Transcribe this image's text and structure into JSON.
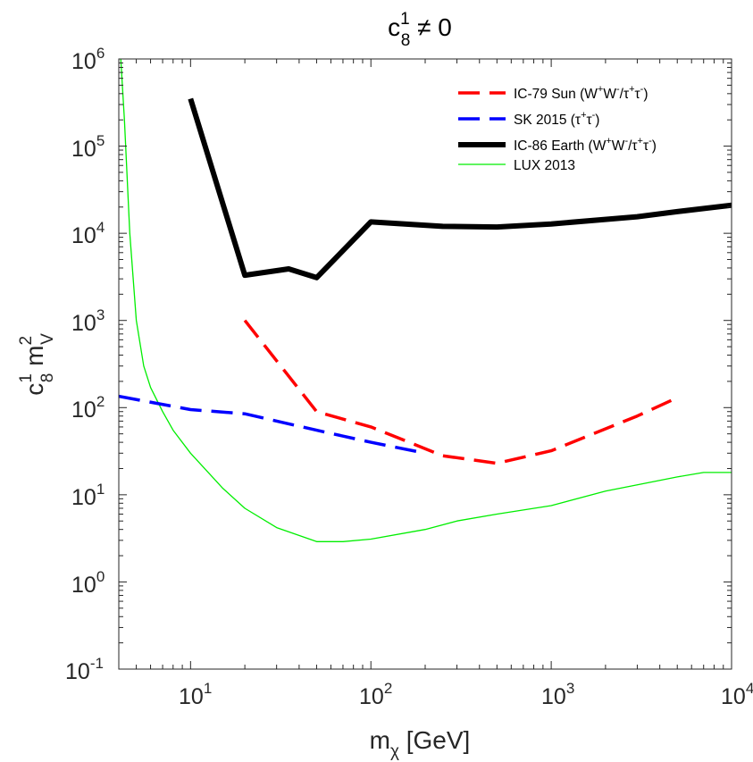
{
  "chart_data": {
    "type": "line",
    "title": {
      "base": "c",
      "sub": "8",
      "sup": "1",
      "rest": " ≠ 0"
    },
    "xlabel": {
      "base": "m",
      "sub": "χ",
      "rest": " [GeV]"
    },
    "ylabel": {
      "base": "c",
      "sub1": "8",
      "sup1": "1",
      "mid": " m",
      "sub2": "V",
      "sup2": "2"
    },
    "xscale": "log",
    "yscale": "log",
    "xlim": [
      4,
      10000
    ],
    "ylim": [
      0.1,
      1000000
    ],
    "x_ticks": [
      {
        "value": 10,
        "base": "10",
        "exp": "1"
      },
      {
        "value": 100,
        "base": "10",
        "exp": "2"
      },
      {
        "value": 1000,
        "base": "10",
        "exp": "3"
      },
      {
        "value": 10000,
        "base": "10",
        "exp": "4"
      }
    ],
    "y_ticks": [
      {
        "value": 0.1,
        "base": "10",
        "exp": "-1"
      },
      {
        "value": 1,
        "base": "10",
        "exp": "0"
      },
      {
        "value": 10,
        "base": "10",
        "exp": "1"
      },
      {
        "value": 100,
        "base": "10",
        "exp": "2"
      },
      {
        "value": 1000,
        "base": "10",
        "exp": "3"
      },
      {
        "value": 10000,
        "base": "10",
        "exp": "4"
      },
      {
        "value": 100000,
        "base": "10",
        "exp": "5"
      },
      {
        "value": 1000000,
        "base": "10",
        "exp": "6"
      }
    ],
    "grid": false,
    "legend_position": "top-right",
    "series": [
      {
        "id": "ic79-sun",
        "name": "IC-79 Sun (W⁺W⁻/τ⁺τ⁻)",
        "legend": {
          "a": "IC-79 Sun (W",
          "b": "+",
          "c": "W",
          "d": "-",
          "e": "/τ",
          "f": "+",
          "g": "τ",
          "h": "-",
          "i": ")"
        },
        "color": "#ff0000",
        "style": "dashed",
        "width": 3.5,
        "x": [
          20,
          50,
          100,
          250,
          500,
          1000,
          3000,
          5000
        ],
        "y": [
          1000,
          90,
          60,
          28,
          23,
          32,
          80,
          130
        ]
      },
      {
        "id": "sk-2015",
        "name": "SK 2015 (τ⁺τ⁻)",
        "legend": {
          "a": "SK 2015 (τ",
          "b": "+",
          "c": "τ",
          "d": "-",
          "e": ")"
        },
        "color": "#0000ff",
        "style": "dashed",
        "width": 3.5,
        "x": [
          4,
          10,
          20,
          50,
          100,
          200
        ],
        "y": [
          135,
          95,
          85,
          55,
          40,
          30
        ]
      },
      {
        "id": "ic86-earth",
        "name": "IC-86 Earth (W⁺W⁻/τ⁺τ⁻)",
        "legend": {
          "a": "IC-86 Earth (W",
          "b": "+",
          "c": "W",
          "d": "-",
          "e": "/τ",
          "f": "+",
          "g": "τ",
          "h": "-",
          "i": ")"
        },
        "color": "#000000",
        "style": "solid",
        "width": 6,
        "x": [
          10,
          20,
          35,
          50,
          100,
          250,
          500,
          1000,
          3000,
          5000,
          10000
        ],
        "y": [
          350000,
          3300,
          3900,
          3100,
          13500,
          12000,
          11800,
          12800,
          15500,
          17700,
          21000
        ]
      },
      {
        "id": "lux-2013",
        "name": "LUX 2013",
        "legend": {
          "a": "LUX 2013"
        },
        "color": "#00ee00",
        "style": "solid",
        "width": 1.3,
        "x": [
          4.1,
          4.3,
          4.6,
          5.0,
          5.5,
          6.0,
          7.0,
          8.0,
          10,
          15,
          20,
          30,
          50,
          70,
          100,
          200,
          300,
          500,
          1000,
          2000,
          3000,
          5000,
          7000,
          10000
        ],
        "y": [
          1000000,
          200000,
          10000,
          1000,
          300,
          170,
          90,
          55,
          30,
          12,
          7,
          4.2,
          2.9,
          2.9,
          3.1,
          4.0,
          5.0,
          6.0,
          7.5,
          11,
          13,
          16,
          18,
          18
        ]
      }
    ]
  }
}
